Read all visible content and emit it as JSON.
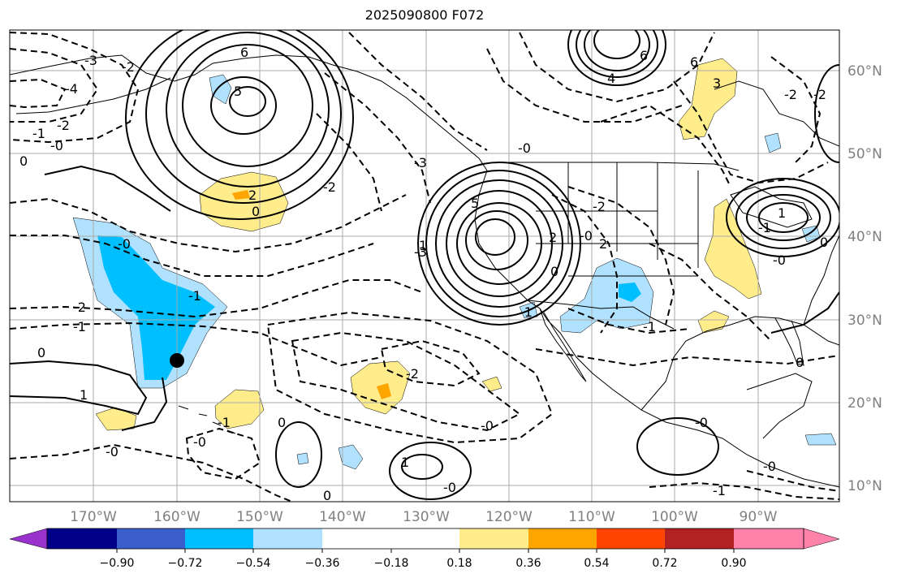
{
  "title": "2025090800 F072",
  "lon_labels": [
    "170°W",
    "160°W",
    "150°W",
    "140°W",
    "130°W",
    "120°W",
    "110°W",
    "100°W",
    "90°W"
  ],
  "lat_labels": [
    "60°N",
    "50°N",
    "40°N",
    "30°N",
    "20°N",
    "10°N"
  ],
  "colorbar": {
    "ticks": [
      "−0.90",
      "−0.72",
      "−0.54",
      "−0.36",
      "−0.18",
      "0.18",
      "0.36",
      "0.54",
      "0.72",
      "0.90"
    ],
    "colors": [
      "#9932cc",
      "#00008b",
      "#3a5fcd",
      "#00bfff",
      "#b0e2ff",
      "#ffffff",
      "#ffec8b",
      "#ffa500",
      "#ff4500",
      "#b22222",
      "#ff82ab"
    ]
  },
  "contour_labels": [
    "-3",
    "-4",
    "-2",
    "-1",
    "-0",
    "0",
    "6",
    "5",
    "-2",
    "-0",
    "-2",
    "-1",
    "-1",
    "0",
    "-0",
    "1",
    "2",
    "-2",
    "-3",
    "0",
    "5",
    "1",
    "2",
    "-0",
    "2",
    "-0",
    "-1",
    "-3",
    "-2",
    "-1",
    "-0",
    "0",
    "1",
    "-0",
    "0",
    "-1",
    "-0",
    "-0",
    "-2",
    "6",
    "4",
    "3",
    "6",
    "-2",
    "-1",
    "-0",
    "0",
    "-0",
    "1",
    "0",
    "-2",
    "-1",
    "0"
  ],
  "marker": {
    "lon": "160°W",
    "lat": "25°N"
  },
  "map_colors": {
    "contour": "#000000",
    "grid": "#a9a9a9",
    "land_border": "#000000"
  }
}
